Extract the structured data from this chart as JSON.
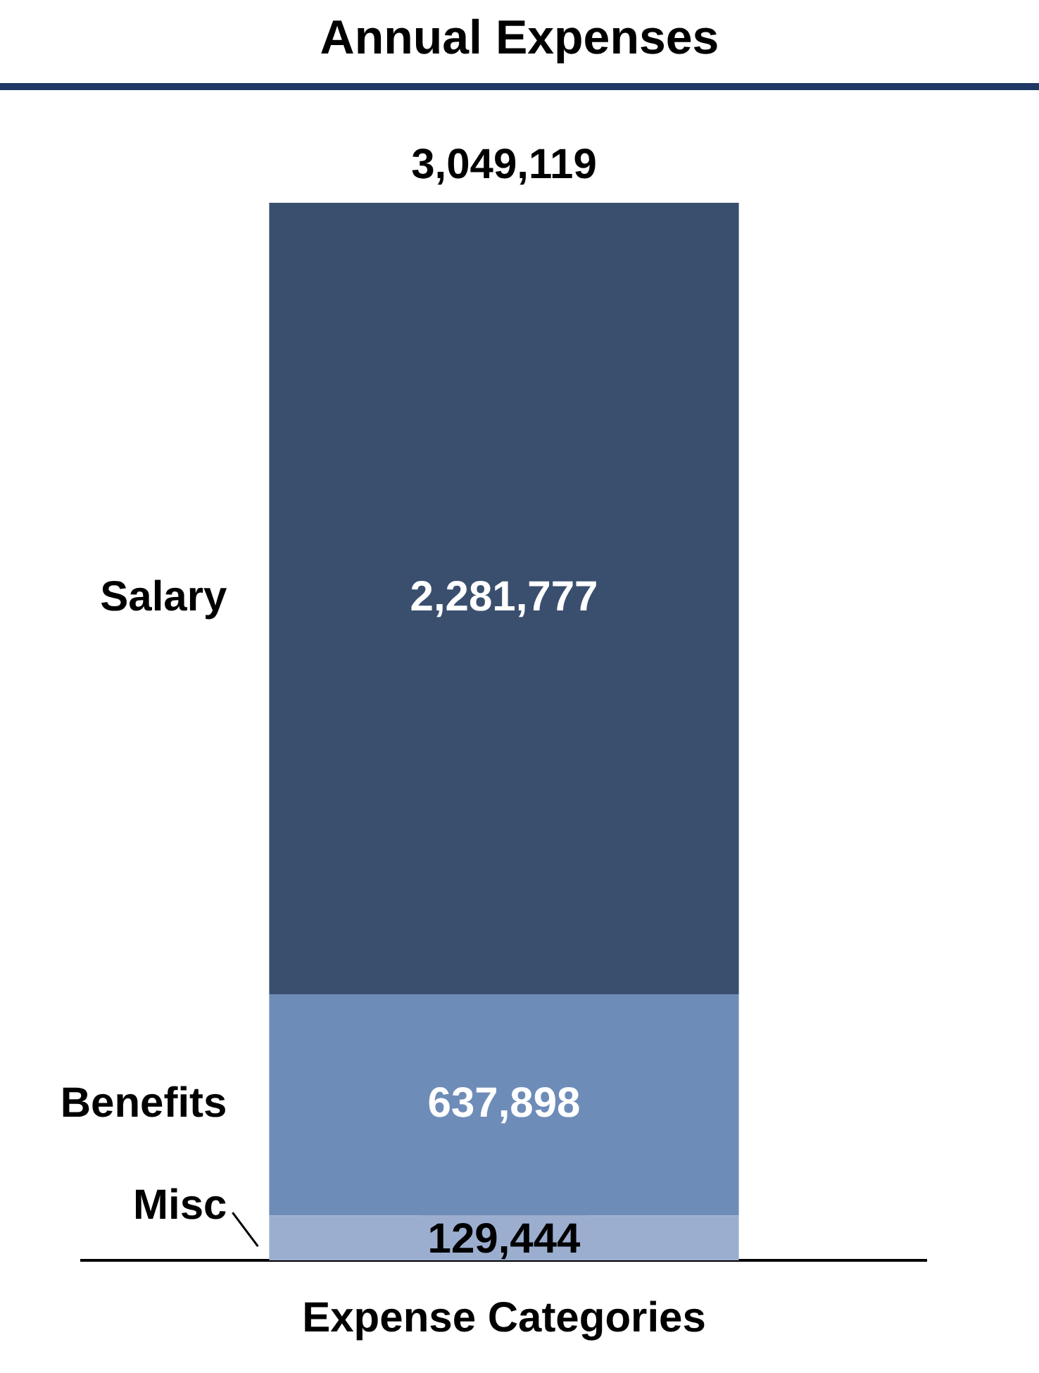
{
  "chart_data": {
    "type": "bar",
    "title": "Annual Expenses",
    "xlabel": "Expense Categories",
    "categories": [
      null
    ],
    "stacked": true,
    "totals": [
      "3,049,119"
    ],
    "series": [
      {
        "name": "Misc",
        "color": "#9caecf",
        "values": [
          129444
        ],
        "value_labels": [
          "129,444"
        ]
      },
      {
        "name": "Benefits",
        "color": "#6e8cb8",
        "values": [
          637898
        ],
        "value_labels": [
          "637,898"
        ]
      },
      {
        "name": "Salary",
        "color": "#3a4f6e",
        "values": [
          2281777
        ],
        "value_labels": [
          "2,281,777"
        ]
      }
    ]
  }
}
